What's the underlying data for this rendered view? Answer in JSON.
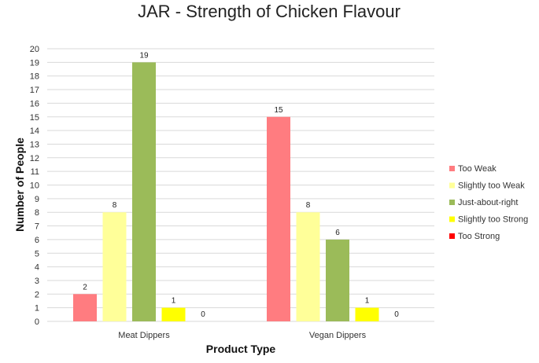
{
  "chart_data": {
    "type": "bar",
    "title": "JAR - Strength of Chicken Flavour",
    "xlabel": "Product Type",
    "ylabel": "Number of People",
    "ylim": [
      0,
      20
    ],
    "ytick_step": 1,
    "grid": true,
    "legend_position": "right",
    "categories": [
      "Meat Dippers",
      "Vegan Dippers"
    ],
    "series": [
      {
        "name": "Too Weak",
        "color": "#ff7c80",
        "values": [
          2,
          15
        ]
      },
      {
        "name": "Slightly too Weak",
        "color": "#ffff99",
        "values": [
          8,
          8
        ]
      },
      {
        "name": "Just-about-right",
        "color": "#9bbb59",
        "values": [
          19,
          6
        ]
      },
      {
        "name": "Slightly too Strong",
        "color": "#ffff00",
        "values": [
          1,
          1
        ]
      },
      {
        "name": "Too Strong",
        "color": "#ff0000",
        "values": [
          0,
          0
        ]
      }
    ]
  }
}
